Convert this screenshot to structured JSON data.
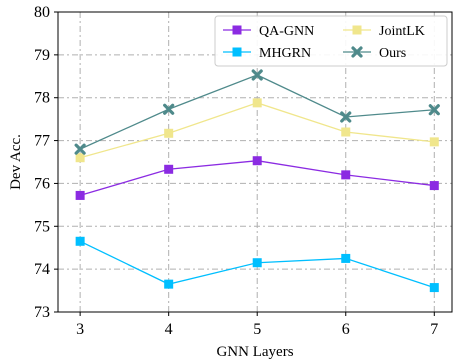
{
  "chart_data": {
    "type": "line",
    "xlabel": "GNN Layers",
    "ylabel": "Dev Acc.",
    "x": [
      3,
      4,
      5,
      6,
      7
    ],
    "xticks": [
      "3",
      "4",
      "5",
      "6",
      "7"
    ],
    "yticks": [
      "73",
      "74",
      "75",
      "76",
      "77",
      "78",
      "79",
      "80"
    ],
    "xlim": [
      2.75,
      7.2
    ],
    "ylim": [
      73,
      80
    ],
    "grid": true,
    "legend_position": "top-right",
    "series": [
      {
        "name": "QA-GNN",
        "values": [
          75.72,
          76.33,
          76.53,
          76.2,
          75.95
        ],
        "color": "#8B2BE2",
        "marker": "square"
      },
      {
        "name": "JointLK",
        "values": [
          76.6,
          77.17,
          77.88,
          77.2,
          76.97
        ],
        "color": "#F0E68C",
        "marker": "square"
      },
      {
        "name": "MHGRN",
        "values": [
          74.65,
          73.65,
          74.15,
          74.25,
          73.57
        ],
        "color": "#00BFFF",
        "marker": "square"
      },
      {
        "name": "Ours",
        "values": [
          76.8,
          77.73,
          78.53,
          77.55,
          77.72
        ],
        "color": "#4F8A8B",
        "marker": "x"
      }
    ]
  }
}
